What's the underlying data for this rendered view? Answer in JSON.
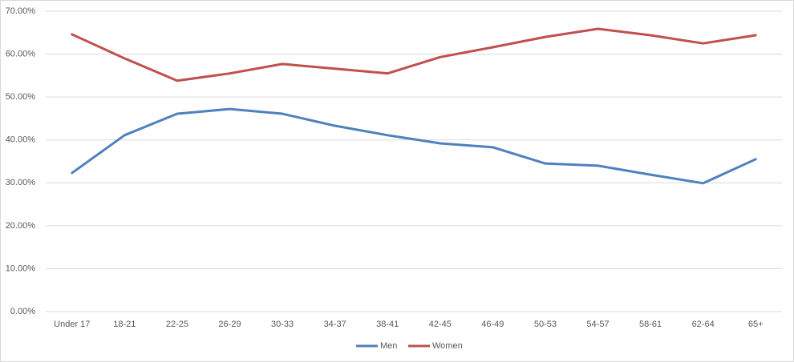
{
  "chart_data": {
    "type": "line",
    "categories": [
      "Under 17",
      "18-21",
      "22-25",
      "26-29",
      "30-33",
      "34-37",
      "38-41",
      "42-45",
      "46-49",
      "50-53",
      "54-57",
      "58-61",
      "62-64",
      "65+"
    ],
    "series": [
      {
        "name": "Men",
        "color": "#4f81bd",
        "values": [
          32.3,
          41.1,
          46.1,
          47.2,
          46.1,
          43.3,
          41.1,
          39.2,
          38.3,
          34.5,
          34.0,
          31.9,
          29.9,
          35.5
        ]
      },
      {
        "name": "Women",
        "color": "#c0504d",
        "values": [
          64.6,
          59.0,
          53.8,
          55.5,
          57.7,
          56.6,
          55.5,
          59.3,
          61.6,
          64.0,
          65.9,
          64.4,
          62.5,
          64.4
        ]
      }
    ],
    "ylim": [
      0,
      70
    ],
    "yticks": [
      {
        "value": 0,
        "label": "0.00%"
      },
      {
        "value": 10,
        "label": "10.00%"
      },
      {
        "value": 20,
        "label": "20.00%"
      },
      {
        "value": 30,
        "label": "30.00%"
      },
      {
        "value": 40,
        "label": "40.00%"
      },
      {
        "value": 50,
        "label": "50.00%"
      },
      {
        "value": 60,
        "label": "60.00%"
      },
      {
        "value": 70,
        "label": "70.00%"
      }
    ],
    "grid": true,
    "legend": "bottom"
  }
}
